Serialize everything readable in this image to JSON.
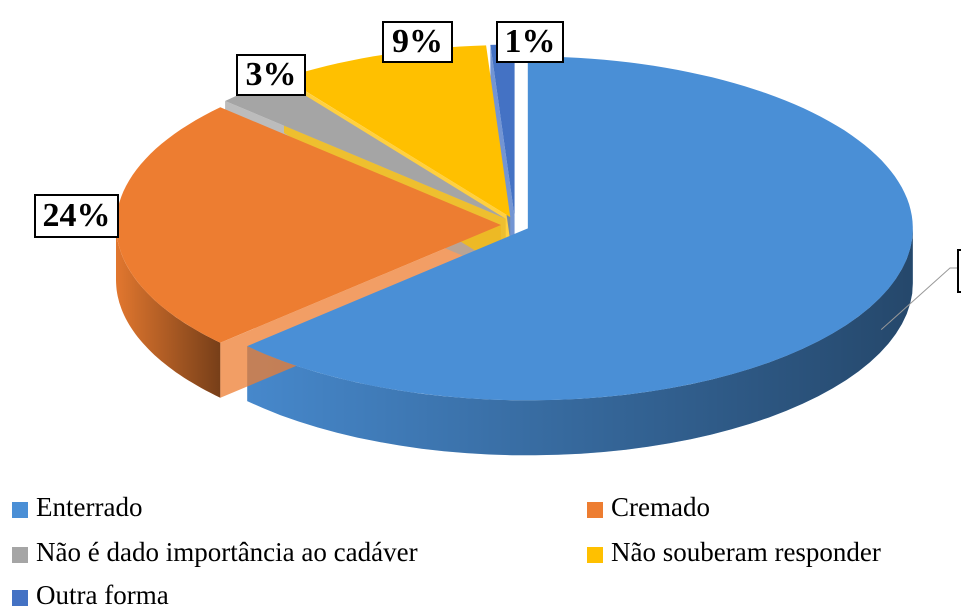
{
  "chart_data": {
    "type": "pie3d",
    "categories": [
      "Enterrado",
      "Cremado",
      "Não é dado importância ao cadáver",
      "Não souberam responder",
      "Outra forma"
    ],
    "values": [
      63,
      24,
      3,
      9,
      1
    ],
    "value_labels": [
      null,
      "24%",
      "3%",
      "9%",
      "1%"
    ],
    "colors": [
      "#4a8fd6",
      "#ed7d31",
      "#a5a5a5",
      "#ffc000",
      "#4472c4"
    ],
    "legend": "bottom"
  }
}
